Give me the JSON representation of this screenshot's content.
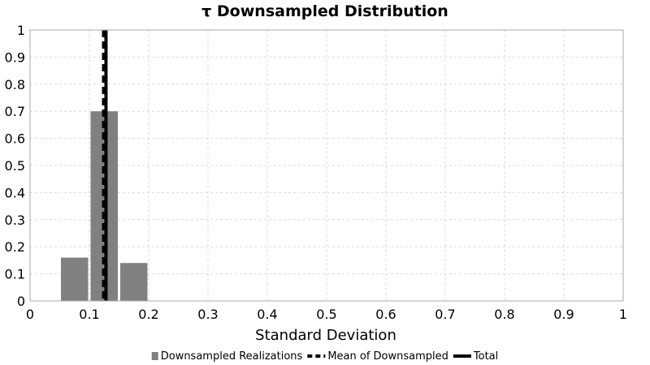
{
  "chart_data": {
    "type": "bar",
    "title": "τ Downsampled Distribution",
    "xlabel": "Standard Deviation",
    "ylabel": "",
    "xlim": [
      0,
      1
    ],
    "ylim": [
      0,
      1
    ],
    "x_ticks": [
      0,
      0.1,
      0.2,
      0.3,
      0.4,
      0.5,
      0.6,
      0.7,
      0.8,
      0.9,
      1
    ],
    "x_tick_labels": [
      "0",
      "0.1",
      "0.2",
      "0.3",
      "0.4",
      "0.5",
      "0.6",
      "0.7",
      "0.8",
      "0.9",
      "1"
    ],
    "y_ticks": [
      0,
      0.1,
      0.2,
      0.3,
      0.4,
      0.5,
      0.6,
      0.7,
      0.8,
      0.9,
      1
    ],
    "y_tick_labels": [
      "0",
      "0.1",
      "0.2",
      "0.3",
      "0.4",
      "0.5",
      "0.6",
      "0.7",
      "0.8",
      "0.9",
      "1"
    ],
    "grid": true,
    "legend_position": "bottom",
    "bars": {
      "name": "Downsampled Realizations",
      "bins": [
        {
          "x_start": 0.05,
          "x_end": 0.1,
          "value": 0.16
        },
        {
          "x_start": 0.1,
          "x_end": 0.15,
          "value": 0.7
        },
        {
          "x_start": 0.15,
          "x_end": 0.2,
          "value": 0.14
        }
      ],
      "color": "#808080"
    },
    "vlines": [
      {
        "name": "Mean of Downsampled",
        "x": 0.124,
        "style": "dashed",
        "color": "#000000"
      },
      {
        "name": "Total",
        "x": 0.128,
        "style": "solid",
        "color": "#000000"
      }
    ],
    "legend": [
      {
        "label": "Downsampled Realizations",
        "kind": "bar",
        "color": "#808080"
      },
      {
        "label": "Mean of Downsampled",
        "kind": "dashed-line",
        "color": "#000000"
      },
      {
        "label": "Total",
        "kind": "solid-line",
        "color": "#000000"
      }
    ]
  }
}
